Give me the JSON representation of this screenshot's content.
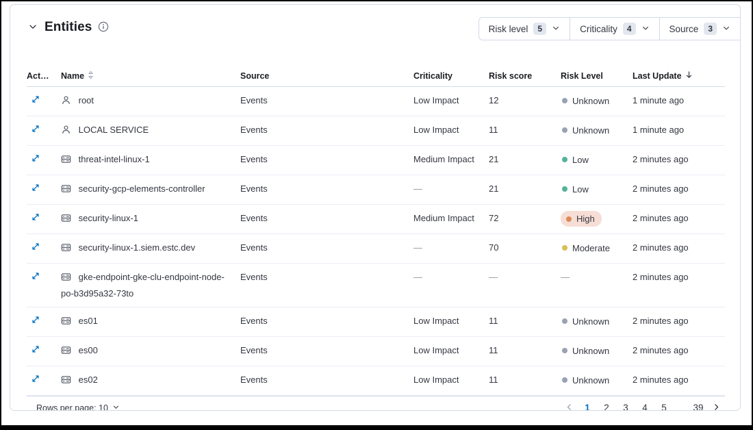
{
  "panel": {
    "title": "Entities",
    "filters": [
      {
        "label": "Risk level",
        "count": "5"
      },
      {
        "label": "Criticality",
        "count": "4"
      },
      {
        "label": "Source",
        "count": "3"
      }
    ]
  },
  "table": {
    "columns": [
      {
        "label": "Actions",
        "sort": "none"
      },
      {
        "label": "Name",
        "sort": "sortable"
      },
      {
        "label": "Source",
        "sort": "none"
      },
      {
        "label": "Criticality",
        "sort": "none"
      },
      {
        "label": "Risk score",
        "sort": "none"
      },
      {
        "label": "Risk Level",
        "sort": "none"
      },
      {
        "label": "Last Update",
        "sort": "desc"
      }
    ],
    "rows": [
      {
        "name": "root",
        "type": "user",
        "source": "Events",
        "criticality": "Low Impact",
        "risk_score": "12",
        "risk_level": "Unknown",
        "last_update": "1 minute ago"
      },
      {
        "name": "LOCAL SERVICE",
        "type": "user",
        "source": "Events",
        "criticality": "Low Impact",
        "risk_score": "11",
        "risk_level": "Unknown",
        "last_update": "1 minute ago"
      },
      {
        "name": "threat-intel-linux-1",
        "type": "host",
        "source": "Events",
        "criticality": "Medium Impact",
        "risk_score": "21",
        "risk_level": "Low",
        "last_update": "2 minutes ago"
      },
      {
        "name": "security-gcp-elements-controller",
        "type": "host",
        "source": "Events",
        "criticality": "—",
        "risk_score": "21",
        "risk_level": "Low",
        "last_update": "2 minutes ago"
      },
      {
        "name": "security-linux-1",
        "type": "host",
        "source": "Events",
        "criticality": "Medium Impact",
        "risk_score": "72",
        "risk_level": "High",
        "last_update": "2 minutes ago"
      },
      {
        "name": "security-linux-1.siem.estc.dev",
        "type": "host",
        "source": "Events",
        "criticality": "—",
        "risk_score": "70",
        "risk_level": "Moderate",
        "last_update": "2 minutes ago"
      },
      {
        "name": "gke-endpoint-gke-clu-endpoint-node-po-b3d95a32-73to",
        "type": "host",
        "source": "Events",
        "criticality": "—",
        "risk_score": "—",
        "risk_level": "—",
        "last_update": "2 minutes ago"
      },
      {
        "name": "es01",
        "type": "host",
        "source": "Events",
        "criticality": "Low Impact",
        "risk_score": "11",
        "risk_level": "Unknown",
        "last_update": "2 minutes ago"
      },
      {
        "name": "es00",
        "type": "host",
        "source": "Events",
        "criticality": "Low Impact",
        "risk_score": "11",
        "risk_level": "Unknown",
        "last_update": "2 minutes ago"
      },
      {
        "name": "es02",
        "type": "host",
        "source": "Events",
        "criticality": "Low Impact",
        "risk_score": "11",
        "risk_level": "Unknown",
        "last_update": "2 minutes ago"
      }
    ]
  },
  "footer": {
    "rows_per_page_label": "Rows per page: 10",
    "pages": [
      "1",
      "2",
      "3",
      "4",
      "5",
      "…",
      "39"
    ],
    "active_page": "1"
  },
  "colors": {
    "accent_blue": "#0071c2",
    "risk": {
      "unknown": "#98a2b3",
      "low": "#54b399",
      "moderate": "#d6bf57",
      "high": "#da8b55"
    },
    "high_badge_bg": "#f6ded6",
    "border": "#d3dae6"
  }
}
